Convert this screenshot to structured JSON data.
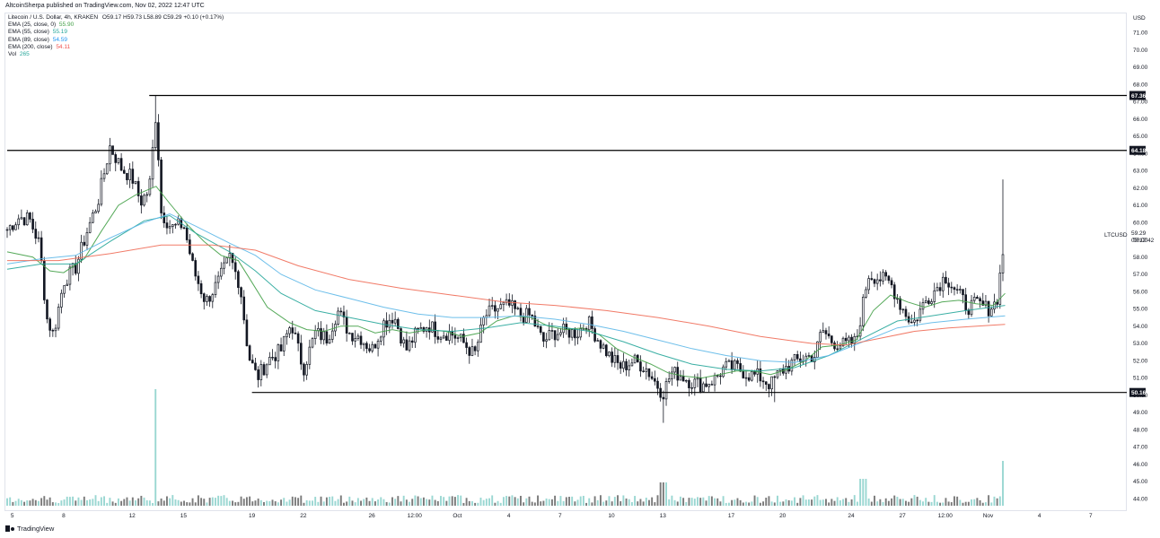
{
  "header": {
    "published_text": "AltcoinSherpa published on TradingView.com, Nov 02, 2022 12:47 UTC"
  },
  "legend": {
    "symbol_line": "Litecoin / U.S. Dollar, 4h, KRAKEN",
    "ohlc": {
      "open_label": "O",
      "open": "59.17",
      "high_label": "H",
      "high": "59.73",
      "low_label": "L",
      "low": "58.89",
      "close_label": "C",
      "close": "59.29",
      "change": "+0.10 (+0.17%)"
    },
    "indicators": [
      {
        "label": "EMA (25, close, 0)",
        "value": "55.90",
        "color": "#4caf50"
      },
      {
        "label": "EMA (55, close)",
        "value": "55.19",
        "color": "#26a69a"
      },
      {
        "label": "EMA (89, close)",
        "value": "54.59",
        "color": "#5eb8e8"
      },
      {
        "label": "EMA (200, close)",
        "value": "54.11",
        "color": "#ef5350"
      },
      {
        "label": "Vol",
        "value": "265",
        "color": "#26a69a"
      }
    ]
  },
  "price_axis": {
    "unit": "USD"
  },
  "symbol_tag": {
    "symbol": "LTCUSD",
    "price": "59.29",
    "countdown": "03:12:42"
  },
  "footer": {
    "brand": "TradingView"
  },
  "chart_data": {
    "type": "candlestick",
    "timeframe": "4h",
    "ylim": [
      43.6,
      71.8
    ],
    "y_ticks": [
      44,
      45,
      46,
      47,
      48,
      49,
      50,
      51,
      52,
      53,
      54,
      55,
      56,
      57,
      58,
      59,
      60,
      61,
      62,
      63,
      64,
      65,
      66,
      67,
      68,
      69,
      70,
      71
    ],
    "x_ticks": [
      {
        "label": "5",
        "x": 0.3
      },
      {
        "label": "8",
        "x": 3.3
      },
      {
        "label": "12",
        "x": 7.3
      },
      {
        "label": "15",
        "x": 10.3
      },
      {
        "label": "19",
        "x": 14.3
      },
      {
        "label": "22",
        "x": 17.3
      },
      {
        "label": "26",
        "x": 21.3
      },
      {
        "label": "12:00",
        "x": 23.8
      },
      {
        "label": "Oct",
        "x": 26.3
      },
      {
        "label": "4",
        "x": 29.3
      },
      {
        "label": "7",
        "x": 32.3
      },
      {
        "label": "10",
        "x": 35.3
      },
      {
        "label": "13",
        "x": 38.3
      },
      {
        "label": "17",
        "x": 42.3
      },
      {
        "label": "20",
        "x": 45.3
      },
      {
        "label": "24",
        "x": 49.3
      },
      {
        "label": "27",
        "x": 52.3
      },
      {
        "label": "12:00",
        "x": 54.8
      },
      {
        "label": "Nov",
        "x": 57.3
      },
      {
        "label": "4",
        "x": 60.3
      },
      {
        "label": "7",
        "x": 63.3
      }
    ],
    "x_range": [
      0,
      65.3
    ],
    "horizontal_levels": [
      {
        "value": 67.36,
        "label": "67.36",
        "start_x": 8.3
      },
      {
        "value": 64.18,
        "label": "64.18",
        "start_x": 0
      },
      {
        "value": 50.16,
        "label": "50.16",
        "start_x": 14.3
      }
    ],
    "price_anchors": [
      [
        0,
        59.6
      ],
      [
        0.7,
        60.3
      ],
      [
        1.3,
        60.2
      ],
      [
        1.9,
        58.7
      ],
      [
        2.3,
        54.5
      ],
      [
        2.7,
        53.5
      ],
      [
        3.3,
        56.6
      ],
      [
        4.0,
        57.4
      ],
      [
        4.7,
        59.6
      ],
      [
        5.3,
        61.2
      ],
      [
        6.0,
        64.4
      ],
      [
        6.7,
        63.1
      ],
      [
        7.3,
        62.6
      ],
      [
        7.8,
        61.2
      ],
      [
        8.3,
        61.9
      ],
      [
        8.7,
        66.5
      ],
      [
        9.0,
        60.6
      ],
      [
        9.6,
        59.7
      ],
      [
        10.3,
        59.9
      ],
      [
        10.9,
        57.2
      ],
      [
        11.6,
        55.4
      ],
      [
        12.3,
        56.5
      ],
      [
        13.0,
        58.0
      ],
      [
        13.6,
        56.4
      ],
      [
        14.1,
        52.3
      ],
      [
        14.6,
        51.0
      ],
      [
        15.3,
        52.1
      ],
      [
        16.0,
        52.6
      ],
      [
        16.6,
        54.2
      ],
      [
        17.3,
        51.5
      ],
      [
        18.0,
        53.6
      ],
      [
        18.7,
        53.3
      ],
      [
        19.3,
        54.9
      ],
      [
        20.0,
        53.6
      ],
      [
        20.6,
        53.4
      ],
      [
        21.3,
        52.6
      ],
      [
        22.0,
        54.2
      ],
      [
        22.6,
        54.6
      ],
      [
        23.3,
        52.6
      ],
      [
        23.9,
        53.6
      ],
      [
        24.6,
        54.1
      ],
      [
        25.2,
        53.6
      ],
      [
        25.9,
        53.6
      ],
      [
        26.6,
        53.1
      ],
      [
        27.3,
        52.3
      ],
      [
        27.9,
        54.6
      ],
      [
        28.6,
        55.0
      ],
      [
        29.3,
        55.2
      ],
      [
        30.0,
        54.6
      ],
      [
        30.6,
        54.6
      ],
      [
        31.3,
        53.1
      ],
      [
        31.9,
        53.6
      ],
      [
        32.6,
        53.7
      ],
      [
        33.3,
        53.6
      ],
      [
        33.9,
        54.3
      ],
      [
        34.6,
        53.1
      ],
      [
        35.3,
        52.1
      ],
      [
        35.9,
        51.6
      ],
      [
        36.6,
        52.0
      ],
      [
        37.3,
        51.6
      ],
      [
        37.9,
        50.7
      ],
      [
        38.3,
        50.1
      ],
      [
        38.8,
        51.3
      ],
      [
        39.3,
        51.2
      ],
      [
        39.9,
        50.8
      ],
      [
        40.6,
        50.6
      ],
      [
        41.3,
        50.9
      ],
      [
        41.9,
        51.6
      ],
      [
        42.6,
        51.6
      ],
      [
        43.3,
        51.2
      ],
      [
        43.9,
        51.1
      ],
      [
        44.6,
        50.6
      ],
      [
        45.1,
        51.3
      ],
      [
        45.9,
        51.9
      ],
      [
        46.6,
        52.2
      ],
      [
        47.2,
        52.3
      ],
      [
        47.6,
        53.8
      ],
      [
        48.2,
        53.1
      ],
      [
        48.9,
        52.9
      ],
      [
        49.6,
        53.1
      ],
      [
        50.3,
        57.0
      ],
      [
        50.9,
        56.8
      ],
      [
        51.6,
        56.5
      ],
      [
        52.2,
        55.2
      ],
      [
        52.9,
        54.1
      ],
      [
        53.6,
        55.4
      ],
      [
        54.2,
        56.1
      ],
      [
        54.8,
        56.9
      ],
      [
        55.4,
        56.1
      ],
      [
        56.1,
        55.1
      ],
      [
        56.7,
        55.3
      ],
      [
        57.3,
        55.0
      ],
      [
        57.8,
        55.4
      ],
      [
        58.3,
        59.3
      ]
    ],
    "ema_series": [
      {
        "name": "EMA 25",
        "color": "#43a047",
        "points": [
          [
            0,
            58.3
          ],
          [
            1.5,
            58.0
          ],
          [
            2.5,
            57.2
          ],
          [
            3.3,
            57.1
          ],
          [
            4.5,
            57.9
          ],
          [
            5.5,
            59.5
          ],
          [
            6.5,
            61.0
          ],
          [
            7.5,
            61.6
          ],
          [
            8.7,
            62.1
          ],
          [
            9.5,
            61.1
          ],
          [
            10.5,
            59.9
          ],
          [
            11.5,
            58.9
          ],
          [
            12.5,
            58.1
          ],
          [
            13.5,
            57.8
          ],
          [
            14.2,
            56.7
          ],
          [
            15.2,
            55.1
          ],
          [
            16.5,
            54.2
          ],
          [
            17.5,
            53.8
          ],
          [
            18.5,
            53.7
          ],
          [
            19.5,
            54.0
          ],
          [
            20.5,
            54.0
          ],
          [
            21.5,
            53.6
          ],
          [
            22.5,
            53.8
          ],
          [
            23.5,
            53.6
          ],
          [
            24.6,
            53.8
          ],
          [
            25.6,
            53.7
          ],
          [
            26.6,
            53.4
          ],
          [
            27.6,
            53.6
          ],
          [
            28.6,
            54.3
          ],
          [
            29.6,
            54.6
          ],
          [
            30.6,
            54.5
          ],
          [
            31.6,
            54.0
          ],
          [
            32.6,
            53.8
          ],
          [
            33.6,
            53.9
          ],
          [
            34.6,
            53.5
          ],
          [
            35.6,
            52.7
          ],
          [
            36.6,
            52.2
          ],
          [
            37.6,
            51.8
          ],
          [
            38.6,
            51.3
          ],
          [
            39.6,
            51.1
          ],
          [
            40.6,
            51.0
          ],
          [
            41.6,
            51.2
          ],
          [
            42.6,
            51.4
          ],
          [
            43.6,
            51.4
          ],
          [
            44.6,
            51.2
          ],
          [
            45.6,
            51.5
          ],
          [
            46.6,
            52.0
          ],
          [
            47.6,
            52.8
          ],
          [
            48.6,
            52.9
          ],
          [
            49.6,
            53.2
          ],
          [
            50.6,
            54.9
          ],
          [
            51.6,
            55.8
          ],
          [
            52.6,
            55.4
          ],
          [
            53.6,
            55.1
          ],
          [
            54.6,
            55.4
          ],
          [
            55.6,
            55.5
          ],
          [
            56.6,
            55.3
          ],
          [
            57.6,
            55.2
          ],
          [
            58.3,
            55.9
          ]
        ]
      },
      {
        "name": "EMA 55",
        "color": "#26a69a",
        "points": [
          [
            0,
            57.3
          ],
          [
            2,
            57.6
          ],
          [
            4,
            57.6
          ],
          [
            6,
            58.9
          ],
          [
            8,
            60.1
          ],
          [
            9.5,
            60.4
          ],
          [
            11,
            59.4
          ],
          [
            13,
            58.3
          ],
          [
            14.5,
            57.2
          ],
          [
            16,
            55.9
          ],
          [
            18,
            54.9
          ],
          [
            20,
            54.5
          ],
          [
            22,
            54.1
          ],
          [
            24,
            53.8
          ],
          [
            26,
            53.7
          ],
          [
            28,
            53.9
          ],
          [
            30,
            54.2
          ],
          [
            32,
            54.0
          ],
          [
            34,
            53.7
          ],
          [
            36,
            53.1
          ],
          [
            38,
            52.4
          ],
          [
            40,
            51.8
          ],
          [
            42,
            51.5
          ],
          [
            44,
            51.4
          ],
          [
            46,
            51.6
          ],
          [
            48,
            52.3
          ],
          [
            50,
            53.3
          ],
          [
            52,
            54.3
          ],
          [
            54,
            54.6
          ],
          [
            56,
            54.9
          ],
          [
            58.3,
            55.2
          ]
        ]
      },
      {
        "name": "EMA 89",
        "color": "#5eb8e8",
        "points": [
          [
            0,
            57.6
          ],
          [
            2,
            57.9
          ],
          [
            4,
            58.1
          ],
          [
            6,
            59.1
          ],
          [
            8,
            60.0
          ],
          [
            9.5,
            60.5
          ],
          [
            11,
            59.8
          ],
          [
            13,
            58.8
          ],
          [
            14.5,
            58.1
          ],
          [
            16,
            57.0
          ],
          [
            18,
            56.1
          ],
          [
            20,
            55.6
          ],
          [
            22,
            55.1
          ],
          [
            24,
            54.7
          ],
          [
            26,
            54.5
          ],
          [
            28,
            54.5
          ],
          [
            30,
            54.6
          ],
          [
            32,
            54.4
          ],
          [
            34,
            54.1
          ],
          [
            36,
            53.7
          ],
          [
            38,
            53.2
          ],
          [
            40,
            52.7
          ],
          [
            42,
            52.3
          ],
          [
            44,
            52.0
          ],
          [
            46,
            51.9
          ],
          [
            48,
            52.3
          ],
          [
            50,
            53.1
          ],
          [
            52,
            53.9
          ],
          [
            54,
            54.2
          ],
          [
            56,
            54.4
          ],
          [
            58.3,
            54.6
          ]
        ]
      },
      {
        "name": "EMA 200",
        "color": "#ef6c57",
        "points": [
          [
            0,
            57.8
          ],
          [
            3,
            57.8
          ],
          [
            6,
            58.2
          ],
          [
            9,
            58.7
          ],
          [
            12,
            58.7
          ],
          [
            14.5,
            58.4
          ],
          [
            17,
            57.5
          ],
          [
            20,
            56.7
          ],
          [
            23,
            56.2
          ],
          [
            26,
            55.8
          ],
          [
            29,
            55.4
          ],
          [
            32,
            55.2
          ],
          [
            35,
            54.9
          ],
          [
            38,
            54.5
          ],
          [
            41,
            54.0
          ],
          [
            44,
            53.4
          ],
          [
            47,
            53.0
          ],
          [
            49,
            52.9
          ],
          [
            51,
            53.3
          ],
          [
            53,
            53.7
          ],
          [
            55,
            53.9
          ],
          [
            58.3,
            54.1
          ]
        ]
      }
    ]
  }
}
